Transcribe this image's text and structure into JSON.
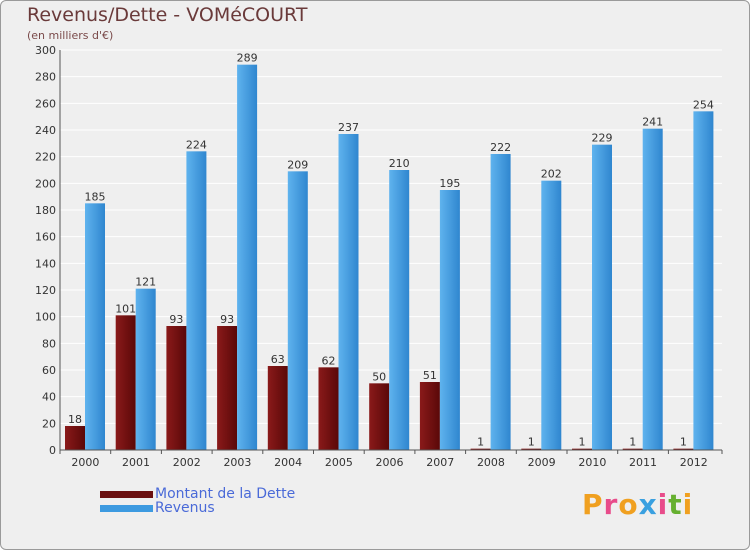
{
  "title": "Revenus/Dette - VOMéCOURT",
  "subtitle": "(en milliers d'€)",
  "legend": {
    "debt_label": "Montant de la Dette",
    "revenue_label": "Revenus"
  },
  "logo": {
    "text": "Proxiti"
  },
  "colors": {
    "debt": "#6b0f0f",
    "revenue": "#3d9ae0",
    "background": "#efefef",
    "grid": "#ffffff",
    "label_text": "#333333"
  },
  "chart_data": {
    "type": "bar",
    "title": "Revenus/Dette - VOMéCOURT",
    "ylabel": "(en milliers d'€)",
    "xlabel": "",
    "categories": [
      "2000",
      "2001",
      "2002",
      "2003",
      "2004",
      "2005",
      "2006",
      "2007",
      "2008",
      "2009",
      "2010",
      "2011",
      "2012"
    ],
    "series": [
      {
        "name": "Montant de la Dette",
        "values": [
          18,
          101,
          93,
          93,
          63,
          62,
          50,
          51,
          1,
          1,
          1,
          1,
          1
        ]
      },
      {
        "name": "Revenus",
        "values": [
          185,
          121,
          224,
          289,
          209,
          237,
          210,
          195,
          222,
          202,
          229,
          241,
          254
        ]
      }
    ],
    "ylim": [
      0,
      300
    ],
    "yticks": [
      0,
      20,
      40,
      60,
      80,
      100,
      120,
      140,
      160,
      180,
      200,
      220,
      240,
      260,
      280,
      300
    ],
    "grid": true,
    "legend_position": "bottom-left"
  }
}
